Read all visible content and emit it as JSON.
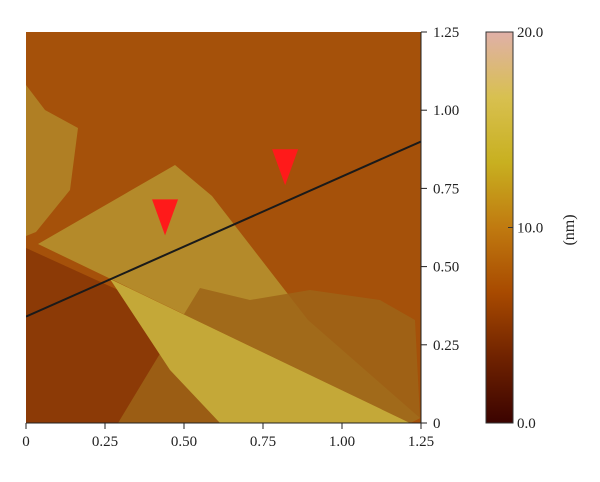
{
  "chart_data": {
    "type": "heatmap",
    "title": "",
    "xlabel": "",
    "ylabel": "",
    "xlim": [
      0,
      1.25
    ],
    "ylim": [
      0,
      1.25
    ],
    "x_ticks": [
      "0",
      "0.25",
      "0.50",
      "0.75",
      "1.00",
      "1.25"
    ],
    "y_ticks": [
      "0",
      "0.25",
      "0.50",
      "0.75",
      "1.00",
      "1.25"
    ],
    "x_tick_values": [
      0,
      0.25,
      0.5,
      0.75,
      1.0,
      1.25
    ],
    "y_tick_values": [
      0,
      0.25,
      0.5,
      0.75,
      1.0,
      1.25
    ],
    "colorbar": {
      "label": "(nm)",
      "min": 0.0,
      "max": 20.0,
      "ticks": [
        "0.0",
        "10.0",
        "20.0"
      ],
      "tick_values": [
        0,
        10,
        20
      ],
      "colors": [
        "#3b0300",
        "#6f2200",
        "#a84a00",
        "#c07a10",
        "#c8b020",
        "#d8c050",
        "#e0b0a8"
      ]
    },
    "colors": {
      "background": "#a5510a",
      "lower_background": "#8c3a06",
      "flake_upper": "#b48a2a",
      "flake_left": "#b07f24",
      "flake_bright": "#c4a838",
      "flake_low": "#9e6418",
      "profile_line": "#1a1a1a",
      "markers": "#ff1a1a"
    },
    "profile_line": {
      "start": [
        0,
        0.34
      ],
      "end": [
        1.25,
        0.9
      ]
    },
    "markers": [
      {
        "x": 0.44,
        "y": 0.6
      },
      {
        "x": 0.82,
        "y": 0.76
      }
    ]
  }
}
